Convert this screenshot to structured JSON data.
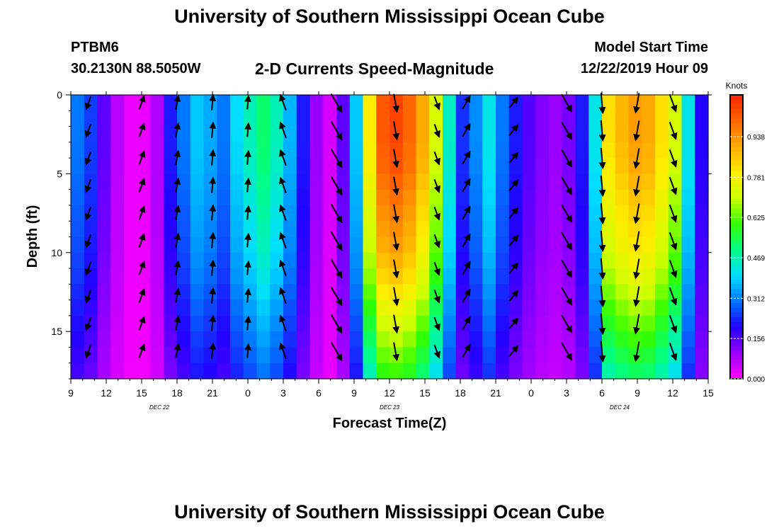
{
  "header": {
    "title": "University of Southern Mississippi Ocean Cube",
    "station_id": "PTBM6",
    "location": "30.2130N 88.5050W",
    "subtitle": "2-D Currents Speed-Magnitude",
    "model_start_label": "Model Start Time",
    "model_start_time": "12/22/2019 Hour 09"
  },
  "footer": {
    "title": "University of Southern Mississippi Ocean Cube"
  },
  "colors": {
    "scale": [
      "#ff00ff",
      "#9900ff",
      "#2200ff",
      "#0077ff",
      "#00ddff",
      "#00ff88",
      "#33ff00",
      "#ccff00",
      "#ffee00",
      "#ffaa00",
      "#ff6600",
      "#ff2200"
    ]
  },
  "chart_data": {
    "type": "heatmap",
    "xlabel": "Forecast Time(Z)",
    "ylabel": "Depth (ft)",
    "x_ticks": [
      "9",
      "12",
      "15",
      "18",
      "21",
      "0",
      "3",
      "6",
      "9",
      "12",
      "15",
      "18",
      "21",
      "0",
      "3",
      "6",
      "9",
      "12",
      "15"
    ],
    "x_range_hours": [
      0,
      54
    ],
    "date_labels": [
      {
        "label": "DEC 22",
        "hour": 7.5
      },
      {
        "label": "DEC 23",
        "hour": 27
      },
      {
        "label": "DEC 24",
        "hour": 46.5
      }
    ],
    "y_ticks": [
      0,
      5,
      10,
      15
    ],
    "ylim": [
      0,
      18
    ],
    "colorbar": {
      "title": "Knots",
      "ticks": [
        "0.938",
        "0.781",
        "0.625",
        "0.469",
        "0.312",
        "0.156",
        "0.000"
      ],
      "range": [
        0,
        1.1
      ]
    },
    "speed_columns_knots": [
      0.3,
      0.25,
      0.15,
      0.07,
      0.02,
      0.02,
      0.08,
      0.22,
      0.3,
      0.38,
      0.35,
      0.3,
      0.4,
      0.46,
      0.52,
      0.46,
      0.36,
      0.22,
      0.1,
      0.04,
      0.15,
      0.38,
      0.8,
      1.02,
      1.05,
      1.0,
      0.9,
      0.72,
      0.45,
      0.24,
      0.32,
      0.42,
      0.3,
      0.22,
      0.16,
      0.12,
      0.1,
      0.13,
      0.22,
      0.42,
      0.82,
      0.88,
      0.92,
      0.9,
      0.82,
      0.72,
      0.42,
      0.2
    ],
    "speed_depth_factor_knots": [
      1.0,
      1.0,
      1.0,
      0.99,
      0.98,
      0.96,
      0.94,
      0.92,
      0.9,
      0.88,
      0.85,
      0.82,
      0.78,
      0.74,
      0.7,
      0.66,
      0.62,
      0.58
    ],
    "arrow_columns": [
      {
        "hour": 1.5,
        "dir_deg": 200,
        "speed": 0.3
      },
      {
        "hour": 6.0,
        "dir_deg": 20,
        "speed": 0.35
      },
      {
        "hour": 9.0,
        "dir_deg": 10,
        "speed": 0.35
      },
      {
        "hour": 12.0,
        "dir_deg": 5,
        "speed": 0.45
      },
      {
        "hour": 15.0,
        "dir_deg": 5,
        "speed": 0.3
      },
      {
        "hour": 18.0,
        "dir_deg": 340,
        "speed": 0.55
      },
      {
        "hour": 22.5,
        "dir_deg": 150,
        "speed": 0.95
      },
      {
        "hour": 27.5,
        "dir_deg": 170,
        "speed": 0.7
      },
      {
        "hour": 31.0,
        "dir_deg": 160,
        "speed": 0.3
      },
      {
        "hour": 33.5,
        "dir_deg": 30,
        "speed": 0.4
      },
      {
        "hour": 37.5,
        "dir_deg": 40,
        "speed": 0.3
      },
      {
        "hour": 42.0,
        "dir_deg": 150,
        "speed": 0.85
      },
      {
        "hour": 45.0,
        "dir_deg": 175,
        "speed": 0.9
      },
      {
        "hour": 48.0,
        "dir_deg": 190,
        "speed": 0.85
      },
      {
        "hour": 51.0,
        "dir_deg": 160,
        "speed": 0.7
      }
    ]
  }
}
